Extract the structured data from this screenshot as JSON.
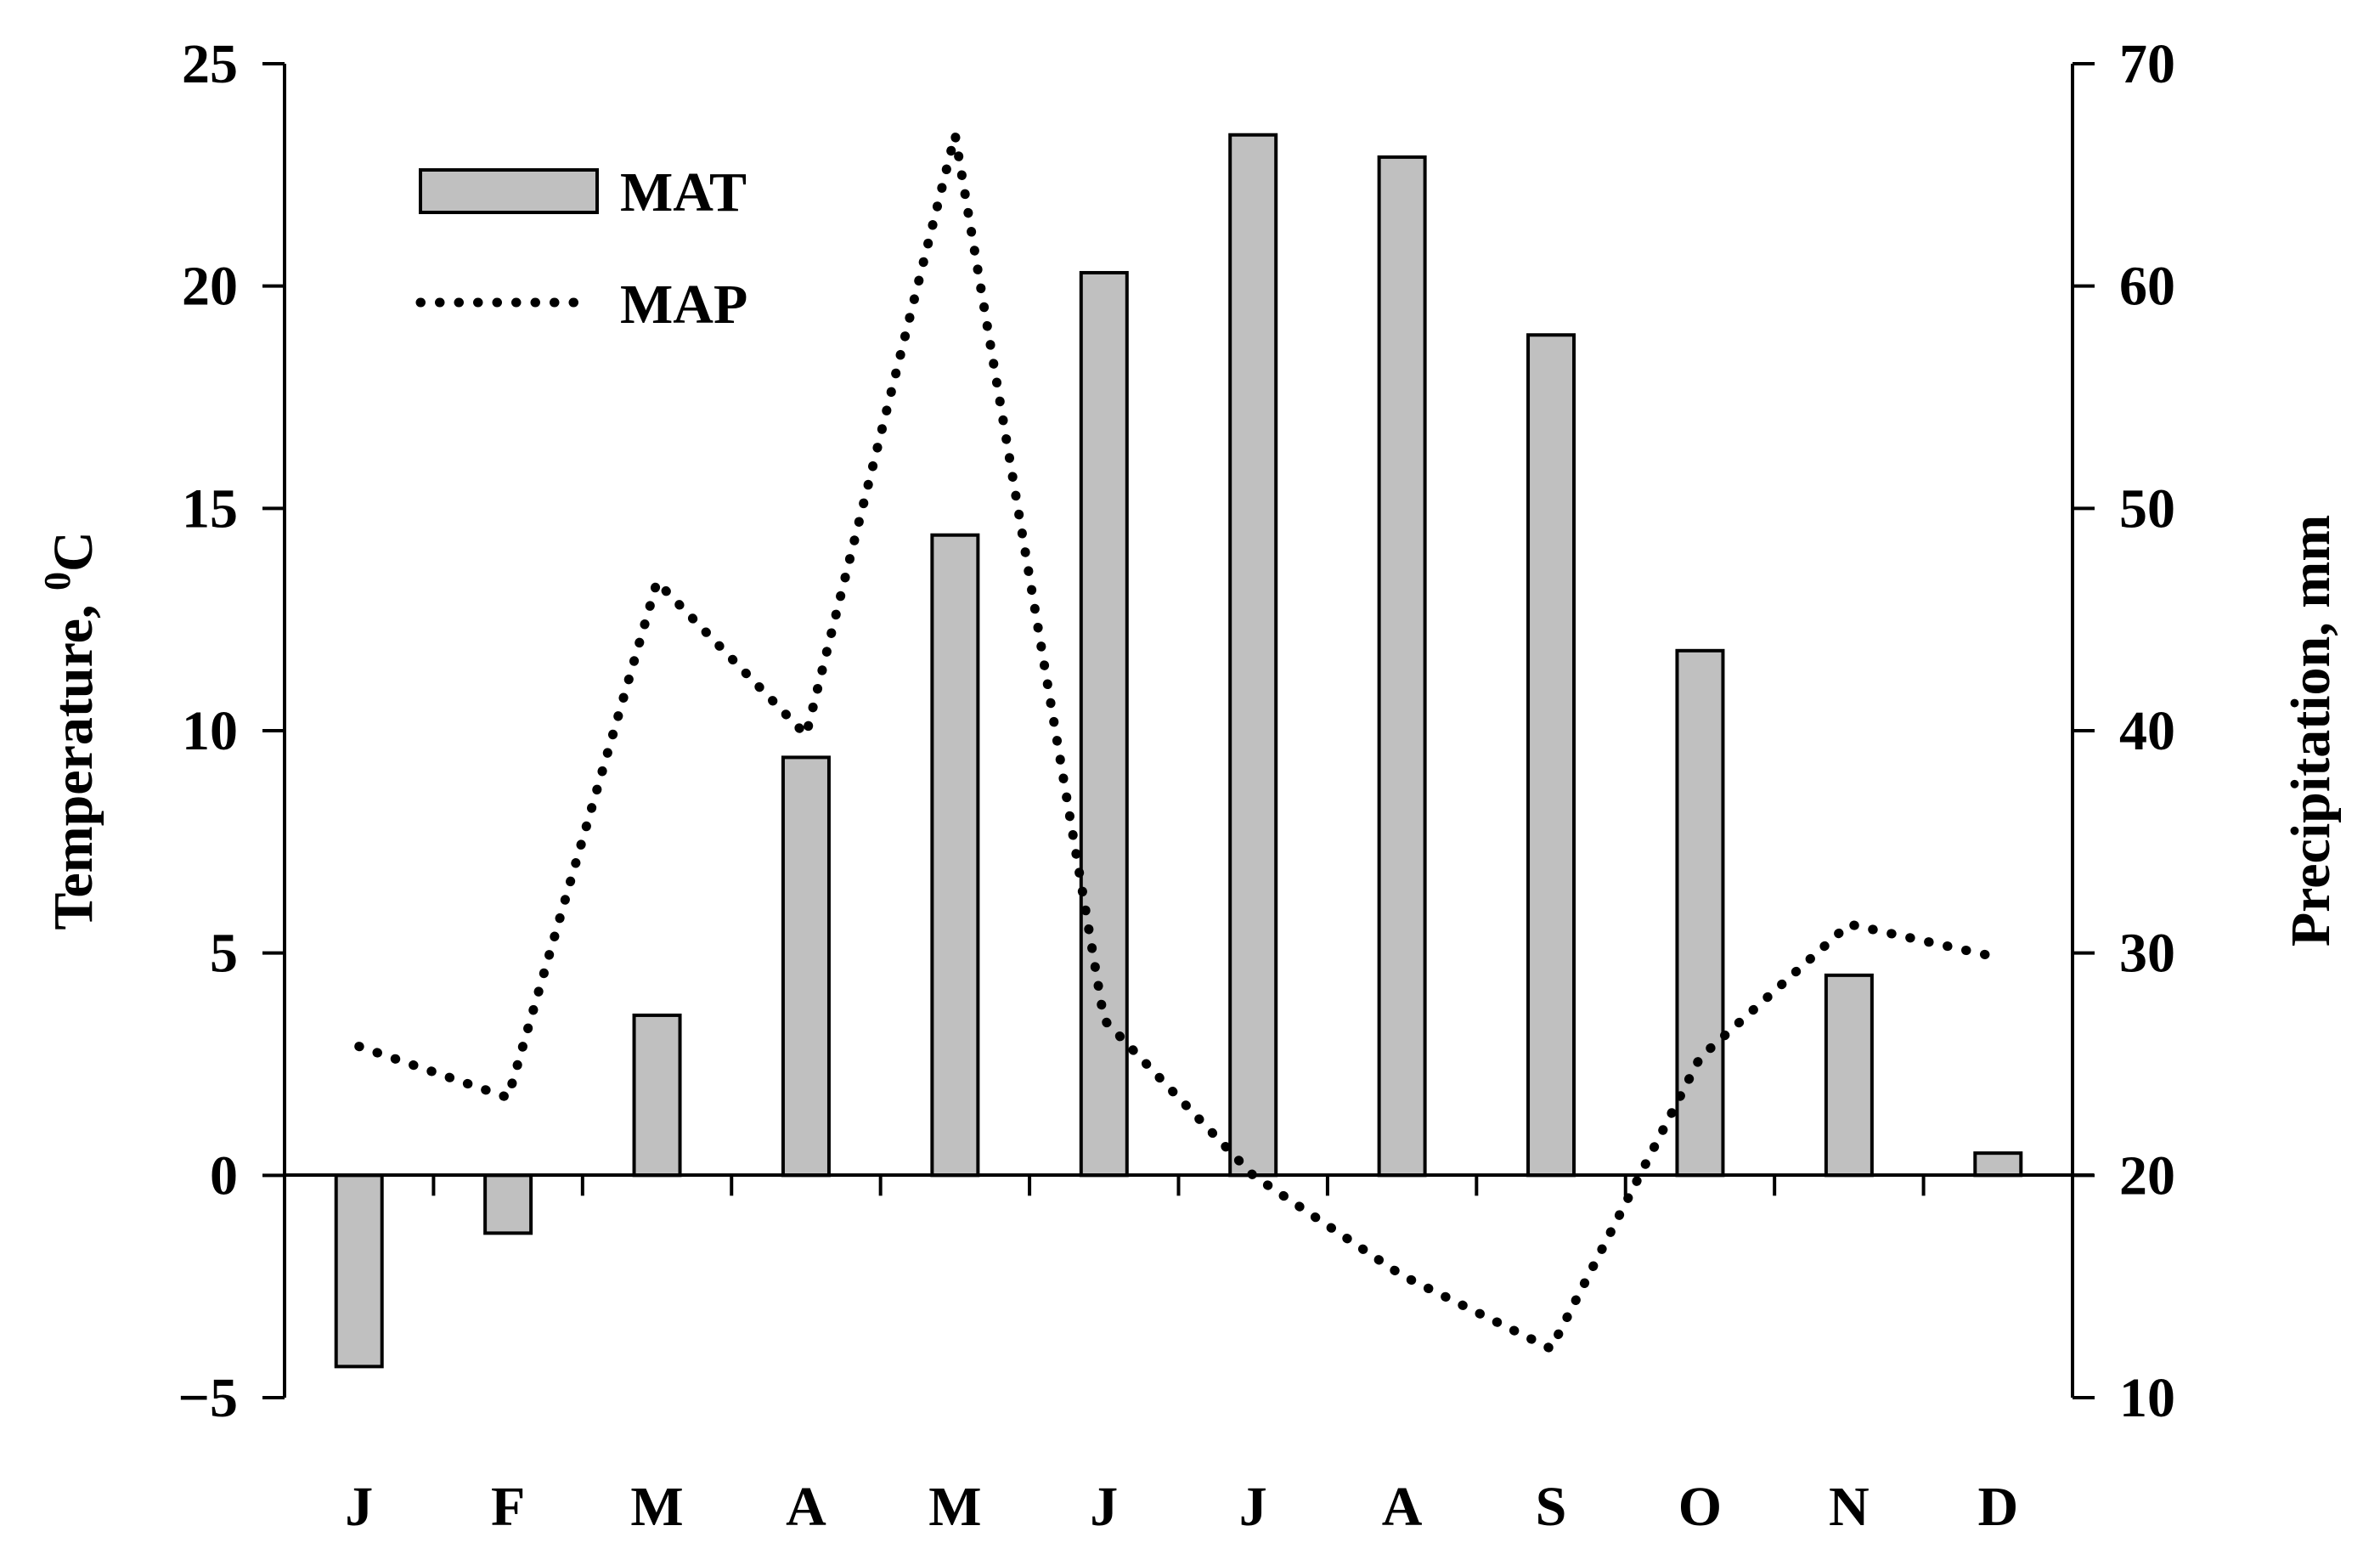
{
  "chart_data": {
    "type": "bar",
    "categories": [
      "J",
      "F",
      "M",
      "A",
      "M",
      "J",
      "J",
      "A",
      "S",
      "O",
      "N",
      "D"
    ],
    "series": [
      {
        "name": "MAT",
        "type": "bar",
        "axis": "left",
        "values": [
          -4.3,
          -1.3,
          3.6,
          9.4,
          14.4,
          20.3,
          23.4,
          22.9,
          18.9,
          11.8,
          4.5,
          0.5
        ]
      },
      {
        "name": "MAP",
        "type": "line",
        "style": "dotted",
        "axis": "right",
        "values": [
          25.8,
          23.5,
          46.7,
          39.8,
          66.8,
          27.0,
          20.0,
          15.5,
          12.2,
          25.3,
          31.3,
          29.8
        ]
      }
    ],
    "ylabel": "Temperature, ⁰C",
    "ylim": [
      -5,
      25
    ],
    "yticks": [
      "−5",
      "0",
      "5",
      "10",
      "15",
      "20",
      "25"
    ],
    "y2label": "Precipitation, mm",
    "y2lim": [
      10,
      70
    ],
    "y2ticks": [
      "10",
      "20",
      "30",
      "40",
      "50",
      "60",
      "70"
    ],
    "legend": {
      "placement": "top-left",
      "entries": [
        "MAT",
        "MAP"
      ]
    },
    "grid": false,
    "colors": {
      "bar_fill": "#c0c0c0",
      "bar_stroke": "#000000",
      "line": "#000000"
    }
  }
}
